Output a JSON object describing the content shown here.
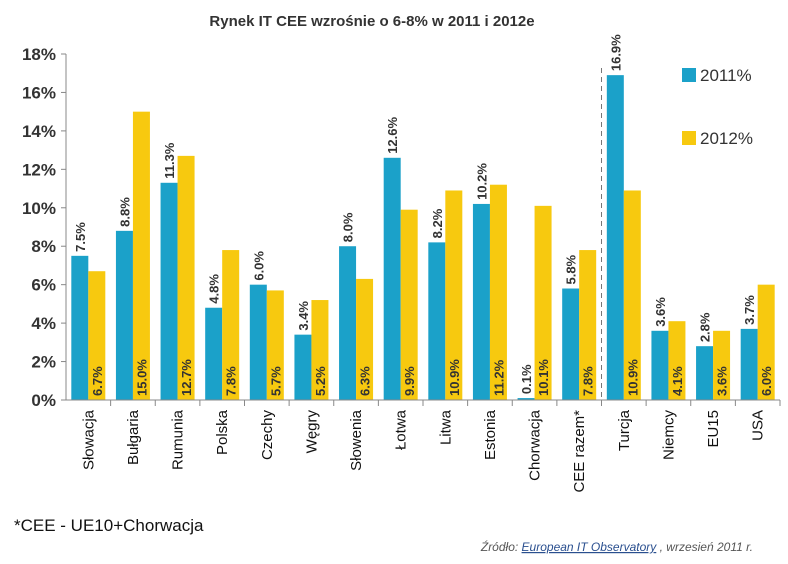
{
  "title": "Rynek IT CEE wzrośnie o 6-8% w 2011 i 2012e",
  "footnote": "*CEE - UE10+Chorwacja",
  "source": {
    "prefix": "Źródło: ",
    "link": "European IT Observatory",
    "suffix": ", wrzesień 2011 r."
  },
  "colors": {
    "series_2011": "#1ba1c9",
    "series_2012": "#f7c90f",
    "axis": "#888888",
    "divider": "#777777"
  },
  "chart_data": {
    "type": "bar",
    "title": "Rynek IT CEE wzrośnie o 6-8% w 2011 i 2012e",
    "categories": [
      "Słowacja",
      "Bułgaria",
      "Rumunia",
      "Polska",
      "Czechy",
      "Węgry",
      "Słowenia",
      "Łotwa",
      "Litwa",
      "Estonia",
      "Chorwacja",
      "CEE razem*",
      "Turcja",
      "Niemcy",
      "EU15",
      "USA"
    ],
    "series": [
      {
        "name": "2011%",
        "values": [
          7.5,
          8.8,
          11.3,
          4.8,
          6.0,
          3.4,
          8.0,
          12.6,
          8.2,
          10.2,
          0.1,
          5.8,
          16.9,
          3.6,
          2.8,
          3.7
        ],
        "labels": [
          "7.5%",
          "8.8%",
          "11.3%",
          "4.8%",
          "6.0%",
          "3.4%",
          "8.0%",
          "12.6%",
          "8.2%",
          "10.2%",
          "0.1%",
          "5.8%",
          "16.9%",
          "3.6%",
          "2.8%",
          "3.7%"
        ]
      },
      {
        "name": "2012%",
        "values": [
          6.7,
          15.0,
          12.7,
          7.8,
          5.7,
          5.2,
          6.3,
          9.9,
          10.9,
          11.2,
          10.1,
          7.8,
          10.9,
          4.1,
          3.6,
          6.0
        ],
        "labels": [
          "6.7%",
          "15.0%",
          "12.7%",
          "7.8%",
          "5.7%",
          "5.2%",
          "6.3%",
          "9.9%",
          "10.9%",
          "11.2%",
          "10.1%",
          "7.8%",
          "10.9%",
          "4.1%",
          "3.6%",
          "6.0%"
        ]
      }
    ],
    "ylim": [
      0,
      18
    ],
    "yticks": [
      "0%",
      "2%",
      "4%",
      "6%",
      "8%",
      "10%",
      "12%",
      "14%",
      "16%",
      "18%"
    ],
    "legend_position": "top-right",
    "grid": false,
    "divider_after_category": "CEE razem*"
  }
}
